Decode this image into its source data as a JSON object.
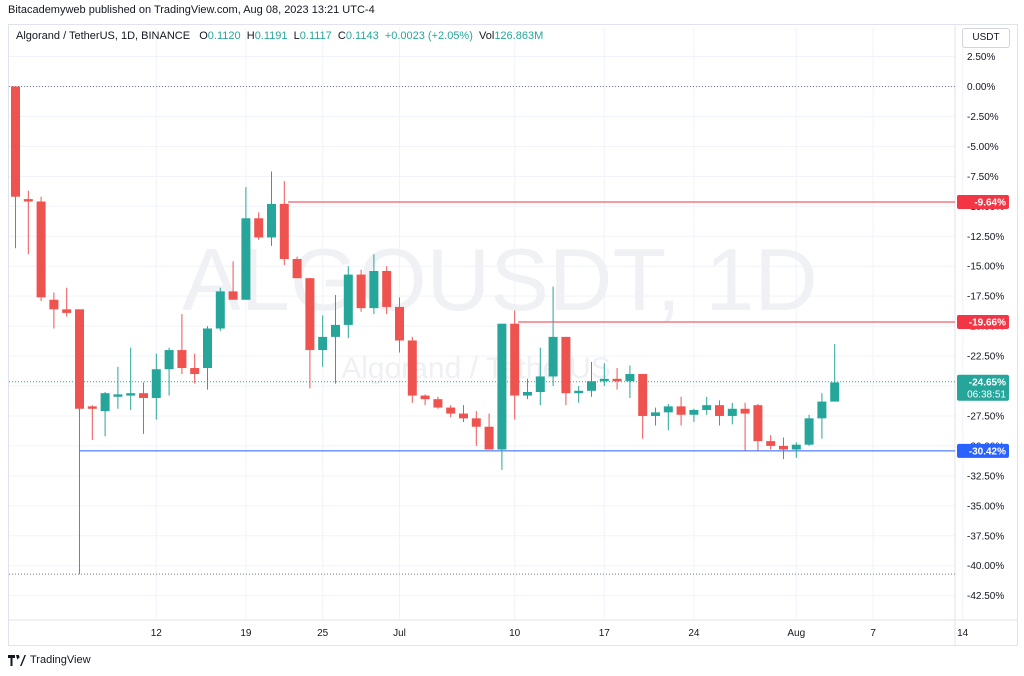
{
  "header": {
    "text": "Bitacademyweb published on TradingView.com, Aug 08, 2023 13:21 UTC-4"
  },
  "legend": {
    "symbol": "Algorand / TetherUS, 1D, BINANCE",
    "o_label": "O",
    "o": "0.1120",
    "h_label": "H",
    "h": "0.1191",
    "l_label": "L",
    "l": "0.1117",
    "c_label": "C",
    "c": "0.1143",
    "change": "+0.0023 (+2.05%)",
    "vol_label": "Vol",
    "vol": "126.863M"
  },
  "currency_button": "USDT",
  "watermark": {
    "main": "ALGOUSDT, 1D",
    "sub": "Algorand / TetherUS"
  },
  "footer": {
    "logo_text": "TradingView"
  },
  "colors": {
    "up": "#26a69a",
    "down": "#ef5350",
    "red_line": "#f23645",
    "blue_line": "#2962ff",
    "grid": "#f0f3fa"
  },
  "chart_data": {
    "type": "candlestick",
    "y_axis": {
      "unit": "percent",
      "range": [
        -43.5,
        4.5
      ],
      "ticks": [
        "2.50%",
        "0.00%",
        "-2.50%",
        "-5.00%",
        "-7.50%",
        "-10.00%",
        "-12.50%",
        "-15.00%",
        "-17.50%",
        "-20.00%",
        "-22.50%",
        "-25.00%",
        "-27.50%",
        "-30.00%",
        "-32.50%",
        "-35.00%",
        "-37.50%",
        "-40.00%",
        "-42.50%"
      ],
      "tick_values": [
        2.5,
        0,
        -2.5,
        -5,
        -7.5,
        -10,
        -12.5,
        -15,
        -17.5,
        -20,
        -22.5,
        -25,
        -27.5,
        -30,
        -32.5,
        -35,
        -37.5,
        -40,
        -42.5
      ]
    },
    "x_axis": {
      "labels": [
        {
          "text": "12",
          "index": 11
        },
        {
          "text": "19",
          "index": 18
        },
        {
          "text": "25",
          "index": 24
        },
        {
          "text": "Jul",
          "index": 30
        },
        {
          "text": "10",
          "index": 39
        },
        {
          "text": "17",
          "index": 46
        },
        {
          "text": "24",
          "index": 53
        },
        {
          "text": "Aug",
          "index": 61
        },
        {
          "text": "7",
          "index": 67
        },
        {
          "text": "14",
          "index": 74
        }
      ]
    },
    "candles": [
      {
        "o": 0.0,
        "h": 0.0,
        "l": -13.5,
        "c": -9.2
      },
      {
        "o": -9.4,
        "h": -8.7,
        "l": -14.0,
        "c": -9.6
      },
      {
        "o": -9.6,
        "h": -9.2,
        "l": -17.9,
        "c": -17.6
      },
      {
        "o": -17.8,
        "h": -17.2,
        "l": -20.2,
        "c": -18.6
      },
      {
        "o": -18.6,
        "h": -16.8,
        "l": -19.2,
        "c": -18.9
      },
      {
        "o": -18.6,
        "h": -18.6,
        "l": -40.7,
        "c": -26.9
      },
      {
        "o": -26.7,
        "h": -26.6,
        "l": -29.5,
        "c": -26.9
      },
      {
        "o": -27.1,
        "h": -25.5,
        "l": -29.2,
        "c": -25.6
      },
      {
        "o": -25.9,
        "h": -23.4,
        "l": -26.9,
        "c": -25.7
      },
      {
        "o": -25.8,
        "h": -21.8,
        "l": -27.0,
        "c": -25.6
      },
      {
        "o": -25.6,
        "h": -24.7,
        "l": -29.0,
        "c": -26.0
      },
      {
        "o": -26.0,
        "h": -22.3,
        "l": -27.8,
        "c": -23.6
      },
      {
        "o": -23.6,
        "h": -21.8,
        "l": -25.8,
        "c": -22.0
      },
      {
        "o": -22.0,
        "h": -19.0,
        "l": -24.0,
        "c": -23.5
      },
      {
        "o": -23.5,
        "h": -22.3,
        "l": -24.8,
        "c": -24.0
      },
      {
        "o": -23.5,
        "h": -20.0,
        "l": -25.3,
        "c": -20.2
      },
      {
        "o": -20.2,
        "h": -16.8,
        "l": -20.4,
        "c": -17.1
      },
      {
        "o": -17.1,
        "h": -14.6,
        "l": -17.6,
        "c": -17.8
      },
      {
        "o": -17.8,
        "h": -8.4,
        "l": -17.8,
        "c": -11.0
      },
      {
        "o": -11.0,
        "h": -10.5,
        "l": -12.8,
        "c": -12.6
      },
      {
        "o": -12.6,
        "h": -7.1,
        "l": -13.3,
        "c": -9.8
      },
      {
        "o": -9.8,
        "h": -7.9,
        "l": -14.9,
        "c": -14.4
      },
      {
        "o": -14.4,
        "h": -14.2,
        "l": -16.0,
        "c": -16.0
      },
      {
        "o": -16.0,
        "h": -16.0,
        "l": -25.2,
        "c": -22.0
      },
      {
        "o": -22.0,
        "h": -19.1,
        "l": -23.4,
        "c": -20.9
      },
      {
        "o": -20.9,
        "h": -17.4,
        "l": -24.8,
        "c": -19.9
      },
      {
        "o": -19.9,
        "h": -15.0,
        "l": -21.0,
        "c": -15.7
      },
      {
        "o": -15.7,
        "h": -15.3,
        "l": -18.8,
        "c": -18.5
      },
      {
        "o": -18.5,
        "h": -14.0,
        "l": -19.0,
        "c": -15.4
      },
      {
        "o": -15.4,
        "h": -15.0,
        "l": -19.0,
        "c": -18.4
      },
      {
        "o": -18.4,
        "h": -17.6,
        "l": -22.2,
        "c": -21.2
      },
      {
        "o": -21.2,
        "h": -20.9,
        "l": -26.4,
        "c": -25.8
      },
      {
        "o": -25.8,
        "h": -25.7,
        "l": -26.6,
        "c": -26.1
      },
      {
        "o": -26.1,
        "h": -25.9,
        "l": -26.9,
        "c": -26.8
      },
      {
        "o": -26.8,
        "h": -26.6,
        "l": -27.6,
        "c": -27.3
      },
      {
        "o": -27.3,
        "h": -26.6,
        "l": -28.0,
        "c": -27.7
      },
      {
        "o": -27.7,
        "h": -27.1,
        "l": -30.0,
        "c": -28.4
      },
      {
        "o": -28.4,
        "h": -27.3,
        "l": -30.3,
        "c": -30.3
      },
      {
        "o": -30.3,
        "h": -19.8,
        "l": -32.0,
        "c": -19.8
      },
      {
        "o": -19.8,
        "h": -18.7,
        "l": -27.8,
        "c": -25.8
      },
      {
        "o": -25.8,
        "h": -24.4,
        "l": -26.1,
        "c": -25.5
      },
      {
        "o": -25.5,
        "h": -21.8,
        "l": -26.6,
        "c": -24.2
      },
      {
        "o": -24.2,
        "h": -16.7,
        "l": -25.0,
        "c": -20.9
      },
      {
        "o": -20.9,
        "h": -20.9,
        "l": -26.6,
        "c": -25.6
      },
      {
        "o": -25.6,
        "h": -25.0,
        "l": -26.4,
        "c": -25.4
      },
      {
        "o": -25.4,
        "h": -23.0,
        "l": -25.9,
        "c": -24.6
      },
      {
        "o": -24.6,
        "h": -23.1,
        "l": -25.0,
        "c": -24.4
      },
      {
        "o": -24.4,
        "h": -23.5,
        "l": -25.3,
        "c": -24.6
      },
      {
        "o": -24.6,
        "h": -23.3,
        "l": -26.0,
        "c": -24.0
      },
      {
        "o": -24.0,
        "h": -24.0,
        "l": -29.4,
        "c": -27.5
      },
      {
        "o": -27.5,
        "h": -26.8,
        "l": -28.3,
        "c": -27.2
      },
      {
        "o": -27.2,
        "h": -26.5,
        "l": -28.7,
        "c": -26.7
      },
      {
        "o": -26.7,
        "h": -25.9,
        "l": -28.3,
        "c": -27.4
      },
      {
        "o": -27.4,
        "h": -26.9,
        "l": -28.0,
        "c": -27.0
      },
      {
        "o": -27.0,
        "h": -25.9,
        "l": -27.4,
        "c": -26.6
      },
      {
        "o": -26.6,
        "h": -26.2,
        "l": -28.3,
        "c": -27.5
      },
      {
        "o": -27.5,
        "h": -26.4,
        "l": -28.2,
        "c": -26.9
      },
      {
        "o": -26.9,
        "h": -26.4,
        "l": -30.4,
        "c": -27.3
      },
      {
        "o": -26.6,
        "h": -26.5,
        "l": -30.4,
        "c": -29.6
      },
      {
        "o": -29.6,
        "h": -29.1,
        "l": -30.3,
        "c": -30.0
      },
      {
        "o": -30.0,
        "h": -29.3,
        "l": -31.1,
        "c": -30.3
      },
      {
        "o": -30.3,
        "h": -29.7,
        "l": -31.0,
        "c": -29.9
      },
      {
        "o": -29.9,
        "h": -27.4,
        "l": -30.0,
        "c": -27.7
      },
      {
        "o": -27.7,
        "h": -25.6,
        "l": -29.4,
        "c": -26.3
      },
      {
        "o": -26.3,
        "h": -21.5,
        "l": -26.3,
        "c": -24.7
      }
    ],
    "horizontal_lines": [
      {
        "value": -9.64,
        "color": "red",
        "label": "-9.64%"
      },
      {
        "value": -19.66,
        "color": "red",
        "label": "-19.66%"
      },
      {
        "value": -30.42,
        "color": "blue",
        "label": "-30.42%"
      }
    ],
    "dotted_lines": [
      0.0,
      -40.7
    ],
    "last_price": {
      "value": -24.65,
      "label": "-24.65%",
      "countdown": "06:38:51"
    }
  }
}
